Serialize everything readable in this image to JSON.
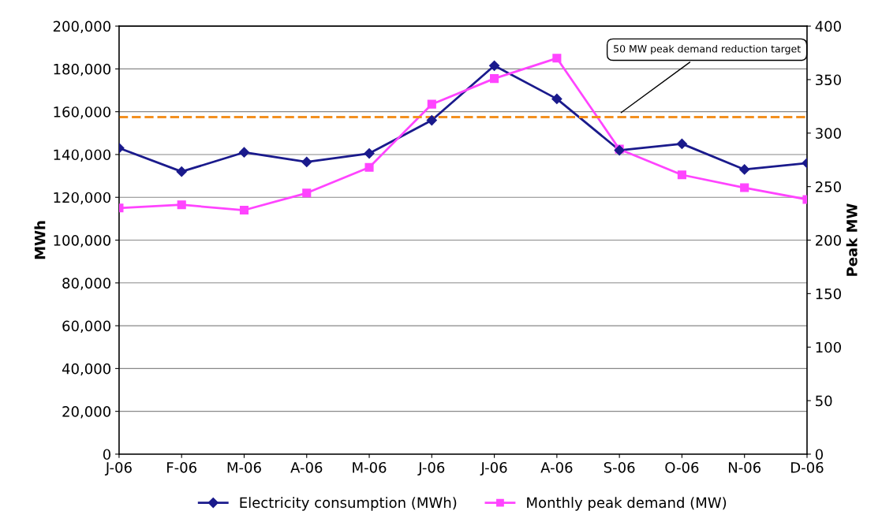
{
  "chart_data": {
    "type": "line",
    "xlabel": null,
    "ylabel": "MWh",
    "y2label": "Peak MW",
    "categories": [
      "J-06",
      "F-06",
      "M-06",
      "A-06",
      "M-06",
      "J-06",
      "J-06",
      "A-06",
      "S-06",
      "O-06",
      "N-06",
      "D-06"
    ],
    "series": [
      {
        "name": "Electricity consumption (MWh)",
        "color": "#1a1a8c",
        "marker": "diamond",
        "values": [
          143000,
          132000,
          141000,
          136500,
          140500,
          156000,
          181500,
          166000,
          142000,
          145000,
          133000,
          136000
        ]
      },
      {
        "name": "Monthly peak demand (MW)",
        "color": "#ff44ff",
        "marker": "square",
        "axis": "y2",
        "values": [
          230,
          233,
          228,
          244,
          268,
          327,
          351,
          370,
          285,
          261,
          249,
          238
        ]
      }
    ],
    "ylim": [
      0,
      200000
    ],
    "yticks": [
      {
        "value": 0,
        "label": "0"
      },
      {
        "value": 20000,
        "label": "20,000"
      },
      {
        "value": 40000,
        "label": "40,000"
      },
      {
        "value": 60000,
        "label": "60,000"
      },
      {
        "value": 80000,
        "label": "80,000"
      },
      {
        "value": 100000,
        "label": "100,000"
      },
      {
        "value": 120000,
        "label": "120,000"
      },
      {
        "value": 140000,
        "label": "140,000"
      },
      {
        "value": 160000,
        "label": "160,000"
      },
      {
        "value": 180000,
        "label": "180,000"
      },
      {
        "value": 200000,
        "label": "200,000"
      }
    ],
    "y2lim": [
      0,
      400
    ],
    "y2ticks": [
      0,
      50,
      100,
      150,
      200,
      250,
      300,
      350,
      400
    ],
    "ref_lines": [
      {
        "axis": "y2",
        "value": 315,
        "color": "#f39020",
        "line_style": "dashed"
      }
    ],
    "annotations": [
      "50 MW peak demand reduction target"
    ],
    "grid": "y",
    "legend": "bottom"
  }
}
